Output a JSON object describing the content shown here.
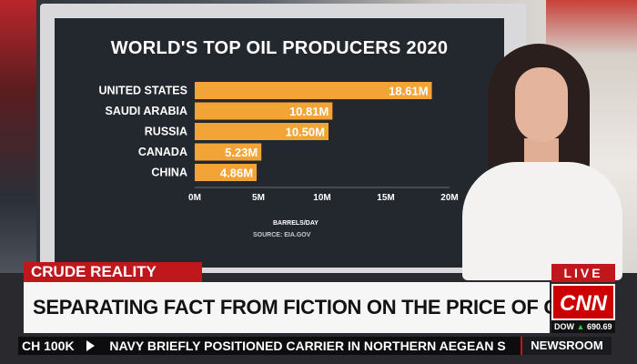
{
  "chart_data": {
    "type": "bar",
    "orientation": "horizontal",
    "title": "WORLD'S TOP OIL PRODUCERS 2020",
    "xlabel": "BARRELS/DAY",
    "source": "SOURCE: EIA.GOV",
    "categories": [
      "UNITED STATES",
      "SAUDI ARABIA",
      "RUSSIA",
      "CANADA",
      "CHINA"
    ],
    "values": [
      18.61,
      10.81,
      10.5,
      5.23,
      4.86
    ],
    "value_labels": [
      "18.61M",
      "10.81M",
      "10.50M",
      "5.23M",
      "4.86M"
    ],
    "xlim": [
      0,
      20
    ],
    "xticks": [
      0,
      5,
      10,
      15,
      20
    ],
    "xtick_labels": [
      "0M",
      "5M",
      "10M",
      "15M",
      "20M"
    ],
    "bar_color": "#f3a437",
    "grid": false,
    "legend": "none"
  },
  "broadcast": {
    "topic_tag": "CRUDE REALITY",
    "headline": "SEPARATING FACT FROM FICTION ON THE PRICE OF GAS",
    "live_label": "LIVE",
    "network_logo": "CNN",
    "dow_label": "DOW",
    "dow_value": "690.69",
    "ticker_left": "CH 100K",
    "ticker_main": "NAVY BRIEFLY POSITIONED CARRIER IN NORTHERN AEGEAN S",
    "ticker_show": "NEWSROOM",
    "colors": {
      "accent_red": "#c0171c",
      "logo_red": "#cc0000"
    }
  }
}
